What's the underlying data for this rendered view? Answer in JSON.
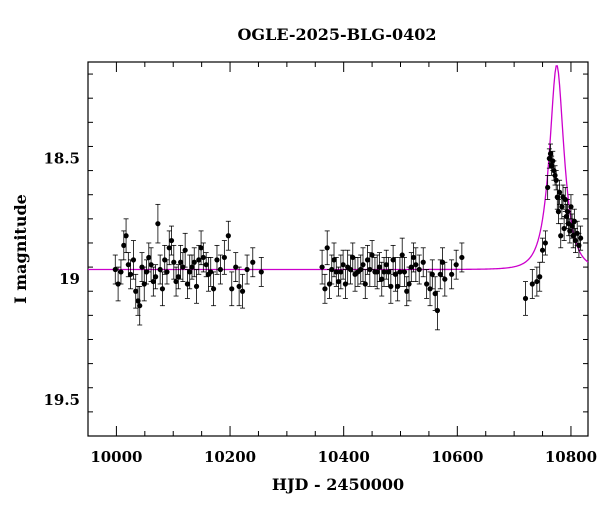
{
  "chart_data": {
    "type": "scatter",
    "title": "OGLE-2025-BLG-0402",
    "xlabel": "HJD - 2450000",
    "ylabel": "I magnitude",
    "xlim": [
      9950,
      10830
    ],
    "ylim": [
      19.65,
      18.1
    ],
    "y_inverted": true,
    "grid": false,
    "legend": "none",
    "x_ticks": [
      "10000",
      "10200",
      "10400",
      "10600",
      "10800"
    ],
    "y_ticks": [
      "18.5",
      "19",
      "19.5"
    ],
    "colors": {
      "points": "#000000",
      "model": "#cc00cc"
    },
    "series": [
      {
        "values": [
          [
            9998,
            18.96,
            0.06
          ],
          [
            10003,
            19.02,
            0.07
          ],
          [
            10008,
            18.97,
            0.05
          ],
          [
            10013,
            18.86,
            0.06
          ],
          [
            10017,
            18.82,
            0.07
          ],
          [
            10021,
            18.94,
            0.05
          ],
          [
            10025,
            18.98,
            0.06
          ],
          [
            10030,
            18.92,
            0.08
          ],
          [
            10034,
            19.05,
            0.07
          ],
          [
            10038,
            19.09,
            0.06
          ],
          [
            10041,
            19.11,
            0.08
          ],
          [
            10045,
            18.95,
            0.06
          ],
          [
            10049,
            19.02,
            0.07
          ],
          [
            10053,
            18.97,
            0.05
          ],
          [
            10057,
            18.91,
            0.06
          ],
          [
            10061,
            18.94,
            0.07
          ],
          [
            10065,
            19.01,
            0.06
          ],
          [
            10069,
            18.99,
            0.05
          ],
          [
            10073,
            18.77,
            0.08
          ],
          [
            10077,
            18.96,
            0.06
          ],
          [
            10081,
            19.04,
            0.07
          ],
          [
            10085,
            18.92,
            0.06
          ],
          [
            10089,
            18.97,
            0.05
          ],
          [
            10093,
            18.87,
            0.07
          ],
          [
            10097,
            18.84,
            0.06
          ],
          [
            10101,
            18.93,
            0.07
          ],
          [
            10105,
            19.01,
            0.06
          ],
          [
            10109,
            18.99,
            0.05
          ],
          [
            10113,
            18.93,
            0.07
          ],
          [
            10117,
            18.95,
            0.06
          ],
          [
            10121,
            18.88,
            0.07
          ],
          [
            10125,
            19.02,
            0.06
          ],
          [
            10129,
            18.97,
            0.07
          ],
          [
            10133,
            18.95,
            0.05
          ],
          [
            10137,
            18.93,
            0.06
          ],
          [
            10141,
            19.03,
            0.07
          ],
          [
            10145,
            18.92,
            0.06
          ],
          [
            10149,
            18.87,
            0.07
          ],
          [
            10153,
            18.91,
            0.06
          ],
          [
            10158,
            18.94,
            0.05
          ],
          [
            10162,
            18.98,
            0.07
          ],
          [
            10166,
            18.97,
            0.06
          ],
          [
            10171,
            19.04,
            0.07
          ],
          [
            10177,
            18.92,
            0.06
          ],
          [
            10183,
            18.96,
            0.06
          ],
          [
            10190,
            18.91,
            0.07
          ],
          [
            10197,
            18.82,
            0.06
          ],
          [
            10203,
            19.04,
            0.07
          ],
          [
            10210,
            18.95,
            0.06
          ],
          [
            10216,
            19.03,
            0.08
          ],
          [
            10222,
            19.05,
            0.07
          ],
          [
            10230,
            18.96,
            0.06
          ],
          [
            10240,
            18.93,
            0.06
          ],
          [
            10255,
            18.97,
            0.06
          ],
          [
            10362,
            18.95,
            0.07
          ],
          [
            10367,
            19.04,
            0.06
          ],
          [
            10371,
            18.87,
            0.07
          ],
          [
            10375,
            19.02,
            0.06
          ],
          [
            10379,
            18.96,
            0.06
          ],
          [
            10383,
            18.92,
            0.07
          ],
          [
            10387,
            18.97,
            0.06
          ],
          [
            10391,
            19.01,
            0.06
          ],
          [
            10395,
            18.97,
            0.07
          ],
          [
            10399,
            18.94,
            0.06
          ],
          [
            10403,
            19.02,
            0.06
          ],
          [
            10407,
            18.95,
            0.07
          ],
          [
            10412,
            18.96,
            0.06
          ],
          [
            10416,
            18.91,
            0.06
          ],
          [
            10420,
            18.98,
            0.07
          ],
          [
            10425,
            18.97,
            0.06
          ],
          [
            10430,
            18.96,
            0.06
          ],
          [
            10434,
            18.94,
            0.07
          ],
          [
            10438,
            19.02,
            0.06
          ],
          [
            10442,
            18.92,
            0.06
          ],
          [
            10446,
            18.96,
            0.07
          ],
          [
            10450,
            18.9,
            0.06
          ],
          [
            10455,
            18.97,
            0.06
          ],
          [
            10459,
            18.97,
            0.07
          ],
          [
            10463,
            18.95,
            0.06
          ],
          [
            10467,
            19.0,
            0.07
          ],
          [
            10471,
            18.97,
            0.06
          ],
          [
            10475,
            18.94,
            0.06
          ],
          [
            10479,
            18.97,
            0.06
          ],
          [
            10483,
            19.03,
            0.07
          ],
          [
            10487,
            18.92,
            0.06
          ],
          [
            10491,
            18.98,
            0.07
          ],
          [
            10495,
            19.03,
            0.06
          ],
          [
            10499,
            18.97,
            0.06
          ],
          [
            10503,
            18.9,
            0.07
          ],
          [
            10507,
            18.97,
            0.06
          ],
          [
            10511,
            19.05,
            0.06
          ],
          [
            10515,
            19.02,
            0.07
          ],
          [
            10519,
            18.95,
            0.06
          ],
          [
            10523,
            18.91,
            0.06
          ],
          [
            10527,
            18.94,
            0.07
          ],
          [
            10533,
            18.96,
            0.06
          ],
          [
            10540,
            18.93,
            0.06
          ],
          [
            10546,
            19.02,
            0.06
          ],
          [
            10552,
            19.04,
            0.07
          ],
          [
            10556,
            18.98,
            0.06
          ],
          [
            10561,
            19.06,
            0.07
          ],
          [
            10565,
            19.13,
            0.08
          ],
          [
            10570,
            18.98,
            0.06
          ],
          [
            10574,
            18.93,
            0.06
          ],
          [
            10578,
            19.0,
            0.07
          ],
          [
            10590,
            18.98,
            0.06
          ],
          [
            10598,
            18.94,
            0.06
          ],
          [
            10608,
            18.91,
            0.06
          ],
          [
            10720,
            19.08,
            0.07
          ],
          [
            10732,
            19.02,
            0.06
          ],
          [
            10740,
            19.01,
            0.06
          ],
          [
            10745,
            18.99,
            0.06
          ],
          [
            10750,
            18.88,
            0.05
          ],
          [
            10755,
            18.85,
            0.05
          ],
          [
            10759,
            18.62,
            0.05
          ],
          [
            10762,
            18.5,
            0.04
          ],
          [
            10764,
            18.48,
            0.04
          ],
          [
            10766,
            18.53,
            0.04
          ],
          [
            10768,
            18.51,
            0.04
          ],
          [
            10770,
            18.55,
            0.04
          ],
          [
            10772,
            18.57,
            0.04
          ],
          [
            10774,
            18.59,
            0.04
          ],
          [
            10776,
            18.66,
            0.05
          ],
          [
            10778,
            18.72,
            0.05
          ],
          [
            10780,
            18.64,
            0.05
          ],
          [
            10782,
            18.82,
            0.05
          ],
          [
            10784,
            18.7,
            0.05
          ],
          [
            10786,
            18.66,
            0.05
          ],
          [
            10788,
            18.79,
            0.05
          ],
          [
            10790,
            18.67,
            0.05
          ],
          [
            10792,
            18.74,
            0.05
          ],
          [
            10794,
            18.72,
            0.05
          ],
          [
            10796,
            18.77,
            0.05
          ],
          [
            10798,
            18.8,
            0.05
          ],
          [
            10800,
            18.7,
            0.05
          ],
          [
            10802,
            18.78,
            0.05
          ],
          [
            10804,
            18.82,
            0.05
          ],
          [
            10806,
            18.76,
            0.05
          ],
          [
            10808,
            18.84,
            0.05
          ],
          [
            10811,
            18.81,
            0.05
          ],
          [
            10814,
            18.86,
            0.05
          ],
          [
            10817,
            18.83,
            0.05
          ]
        ]
      }
    ],
    "model": {
      "type": "line",
      "baseline": 18.96,
      "t0": 10775,
      "tE": 22,
      "u0": 0.5
    }
  }
}
